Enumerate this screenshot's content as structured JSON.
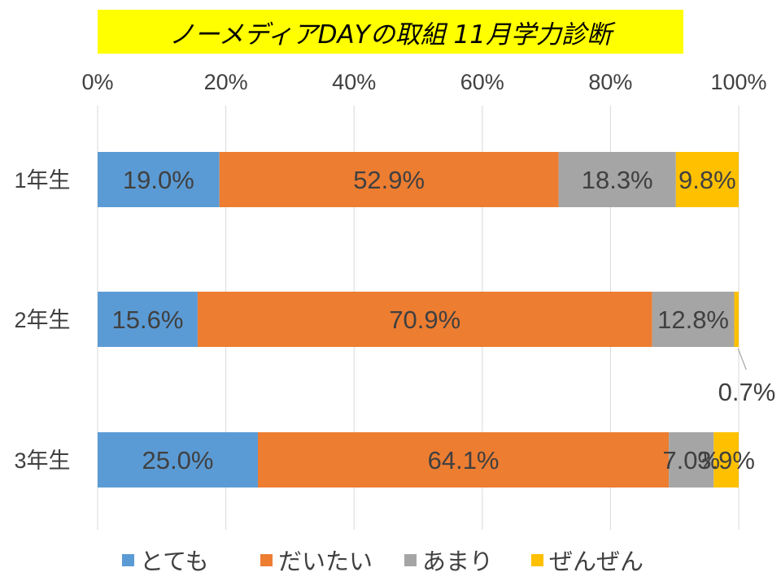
{
  "chart_data": {
    "type": "bar",
    "orientation": "horizontal",
    "stacked": "percent",
    "title": "ノーメディアDAYの取組 11月学力診断",
    "categories": [
      "1年生",
      "2年生",
      "3年生"
    ],
    "series": [
      {
        "name": "とても",
        "color": "#5b9bd5",
        "values": [
          19.0,
          15.6,
          25.0
        ],
        "labels": [
          "19.0%",
          "15.6%",
          "25.0%"
        ]
      },
      {
        "name": "だいたい",
        "color": "#ed7d31",
        "values": [
          52.9,
          70.9,
          64.1
        ],
        "labels": [
          "52.9%",
          "70.9%",
          "64.1%"
        ]
      },
      {
        "name": "あまり",
        "color": "#a5a5a5",
        "values": [
          18.3,
          12.8,
          7.0
        ],
        "labels": [
          "18.3%",
          "12.8%",
          "7.0%"
        ]
      },
      {
        "name": "ぜんぜん",
        "color": "#ffc000",
        "values": [
          9.8,
          0.7,
          3.9
        ],
        "labels": [
          "9.8%",
          "0.7%",
          "3.9%"
        ]
      }
    ],
    "xaxis_ticks": [
      "0%",
      "20%",
      "40%",
      "60%",
      "80%",
      "100%"
    ],
    "xlim": [
      0,
      100
    ],
    "grid": true,
    "legend": "bottom"
  }
}
